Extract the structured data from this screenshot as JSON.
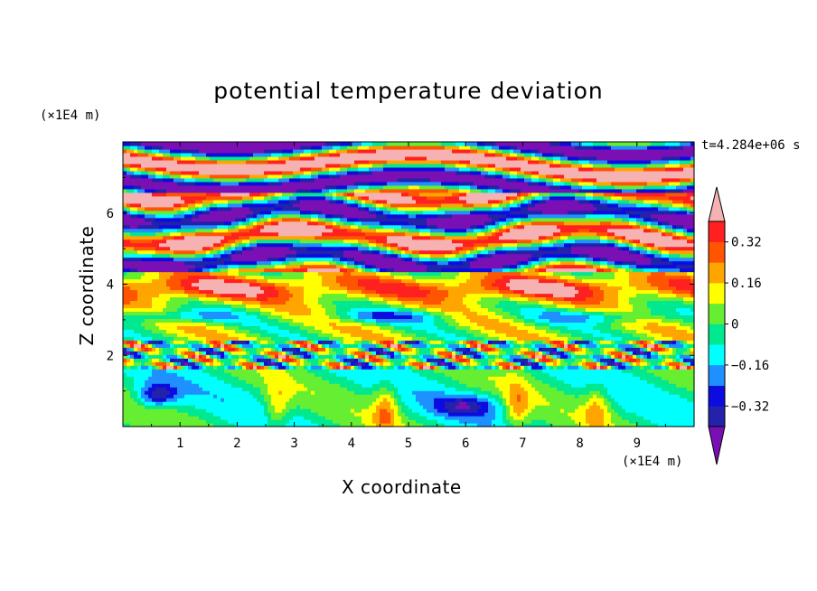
{
  "chart_data": {
    "type": "heatmap",
    "title": "potential temperature deviation",
    "xlabel": "X coordinate",
    "ylabel": "Z coordinate",
    "x_unit": "(×1E4 m)",
    "y_unit": "(×1E4 m)",
    "time_label": "t=4.284e+06 s",
    "xlim": [
      0,
      10
    ],
    "ylim": [
      0,
      8
    ],
    "xticks": [
      1,
      2,
      3,
      4,
      5,
      6,
      7,
      8,
      9
    ],
    "yticks": [
      2,
      4,
      6
    ],
    "colorbar": {
      "levels": [
        -0.4,
        -0.32,
        -0.24,
        -0.16,
        -0.08,
        0,
        0.08,
        0.16,
        0.24,
        0.32,
        0.4
      ],
      "labels": [
        "0.32",
        "0.16",
        "0",
        "−0.16",
        "−0.32"
      ],
      "label_values": [
        0.32,
        0.16,
        0,
        -0.16,
        -0.32
      ],
      "colors": [
        "#7a10b4",
        "#2222aa",
        "#0c0ce0",
        "#1e90ff",
        "#00ffff",
        "#00e890",
        "#66ee33",
        "#ffff00",
        "#ffa500",
        "#ff5500",
        "#ff2020",
        "#f6b2b2"
      ]
    },
    "bands": [
      {
        "z_from": 6.6,
        "z_to": 8.0,
        "pattern": "alternating upper-level bands",
        "value_range": [
          -0.4,
          0.4
        ]
      },
      {
        "z_from": 4.4,
        "z_to": 6.6,
        "pattern": "strong positive and negative layers",
        "value_range": [
          -0.4,
          0.4
        ]
      },
      {
        "z_from": 2.4,
        "z_to": 4.4,
        "pattern": "warm layer near z=4 with cool streaks",
        "value_range": [
          -0.24,
          0.32
        ]
      },
      {
        "z_from": 1.6,
        "z_to": 2.4,
        "pattern": "thin turbulent layer",
        "value_range": [
          -0.4,
          0.4
        ]
      },
      {
        "z_from": 0.0,
        "z_to": 1.6,
        "pattern": "boundary layer with plumes",
        "value_range": [
          -0.32,
          0.24
        ]
      }
    ]
  }
}
